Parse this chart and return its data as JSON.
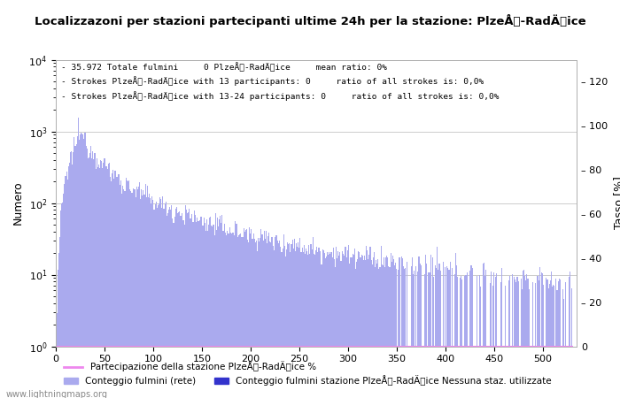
{
  "title": "Localizzazoni per stazioni partecipanti ultime 24h per la stazione: PlzeÅ-RadÄice",
  "station_name": "PlzeÅ-RadÄice",
  "annotation_lines": [
    "35.972 Totale fulmini     0 PlzeÅ-RadÄice     mean ratio: 0%",
    "Strokes PlzeÅ-RadÄice with 13 participants: 0     ratio of all strokes is: 0,0%",
    "Strokes PlzeÅ-RadÄice with 13-24 participants: 0     ratio of all strokes is: 0,0%"
  ],
  "ylabel_left": "Numero",
  "ylabel_right": "Tasso [%]",
  "xlim": [
    0,
    535
  ],
  "ylim_log": [
    1,
    10000
  ],
  "ylim_right": [
    0,
    130
  ],
  "bar_color_light": "#aaaaee",
  "bar_color_dark": "#3333cc",
  "line_color": "#ee88ee",
  "legend_labels": [
    "Conteggio fulmini (rete)",
    "Conteggio fulmini stazione PlzeÅ-RadÄice Nessuna staz. utilizzate",
    "Partecipazione della stazione PlzeÅ-RadÄice %"
  ],
  "watermark": "www.lightningmaps.org",
  "grid_color": "#cccccc",
  "background_color": "#ffffff",
  "right_yticks": [
    0,
    20,
    40,
    60,
    80,
    100,
    120
  ],
  "xticks": [
    0,
    50,
    100,
    150,
    200,
    250,
    300,
    350,
    400,
    450,
    500
  ]
}
